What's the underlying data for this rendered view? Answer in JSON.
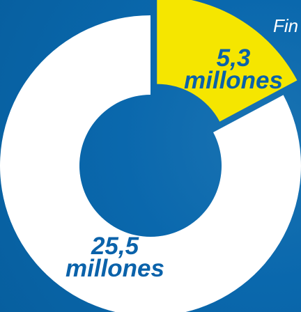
{
  "chart_data": {
    "type": "donut",
    "annotation": "Fin",
    "values": [
      25.5,
      5.3
    ],
    "value_labels": [
      "25,5 millones",
      "5,3 millones"
    ],
    "colors": [
      "#ffffff",
      "#f5e600"
    ]
  }
}
